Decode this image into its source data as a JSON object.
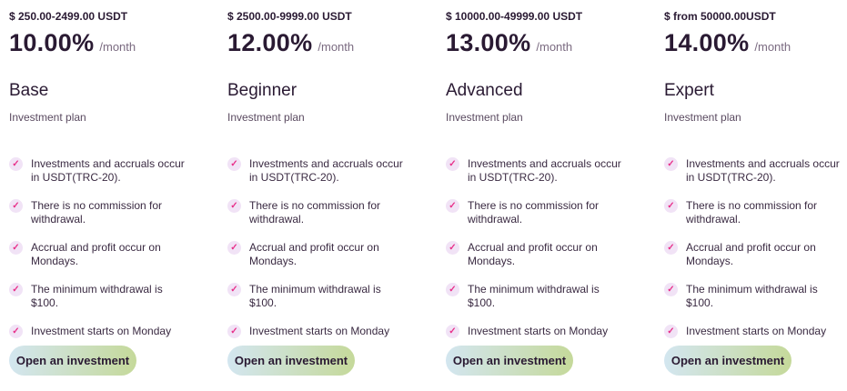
{
  "plans": [
    {
      "range": "$ 250.00-2499.00 USDT",
      "rate": "10.00%",
      "period": "/month",
      "title": "Base",
      "subtitle": "Investment plan",
      "button": "Open an investment"
    },
    {
      "range": "$ 2500.00-9999.00 USDT",
      "rate": "12.00%",
      "period": "/month",
      "title": "Beginner",
      "subtitle": "Investment plan",
      "button": "Open an investment"
    },
    {
      "range": "$ 10000.00-49999.00 USDT",
      "rate": "13.00%",
      "period": "/month",
      "title": "Advanced",
      "subtitle": "Investment plan",
      "button": "Open an investment"
    },
    {
      "range": "$ from 50000.00USDT",
      "rate": "14.00%",
      "period": "/month",
      "title": "Expert",
      "subtitle": "Investment plan",
      "button": "Open an investment"
    }
  ],
  "features": [
    "Investments and accruals occur in USDT(TRC-20).",
    "There is no commission for withdrawal.",
    "Accrual and profit occur on Mondays.",
    "The minimum withdrawal is $100.",
    "Investment starts on Monday"
  ],
  "icons": {
    "feature": "check-icon"
  },
  "colors": {
    "text": "#2a1a33",
    "check": "#e8308a",
    "check_bg": "#f1e3f6",
    "button_from": "#d3e6f0",
    "button_to": "#c5d99a"
  }
}
